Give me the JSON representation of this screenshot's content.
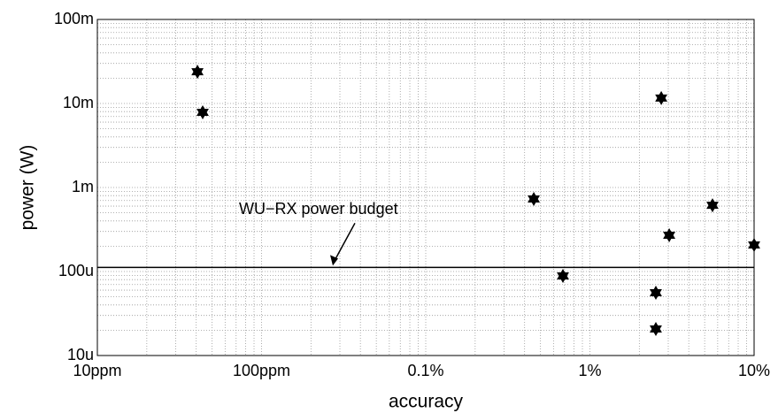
{
  "chart_data": {
    "type": "scatter",
    "xlabel": "accuracy",
    "ylabel": "power (W)",
    "x": [
      4.07e-05,
      4.38e-05,
      0.00455,
      0.00685,
      0.0272,
      0.0252,
      0.0252,
      0.0304,
      0.0558,
      0.1
    ],
    "values": [
      0.0239,
      0.00785,
      0.00073,
      8.86e-05,
      0.0116,
      5.59e-05,
      2.07e-05,
      0.00027,
      0.000615,
      0.000207
    ],
    "color": "#000000",
    "marker": "hexagram",
    "xscale": "log",
    "yscale": "log",
    "xlim": [
      1e-05,
      0.1
    ],
    "ylim": [
      1e-05,
      0.1
    ],
    "xticks": [
      {
        "value": 1e-05,
        "label": "10ppm"
      },
      {
        "value": 0.0001,
        "label": "100ppm"
      },
      {
        "value": 0.001,
        "label": "0.1%"
      },
      {
        "value": 0.01,
        "label": "1%"
      },
      {
        "value": 0.1,
        "label": "10%"
      }
    ],
    "yticks": [
      {
        "value": 1e-05,
        "label": "10u"
      },
      {
        "value": 0.0001,
        "label": "100u"
      },
      {
        "value": 0.001,
        "label": "1m"
      },
      {
        "value": 0.01,
        "label": "10m"
      },
      {
        "value": 0.1,
        "label": "100m"
      }
    ],
    "grid": true,
    "minor_grid": true,
    "hline": {
      "value": 0.000112,
      "label": "WU−RX power budget"
    }
  }
}
